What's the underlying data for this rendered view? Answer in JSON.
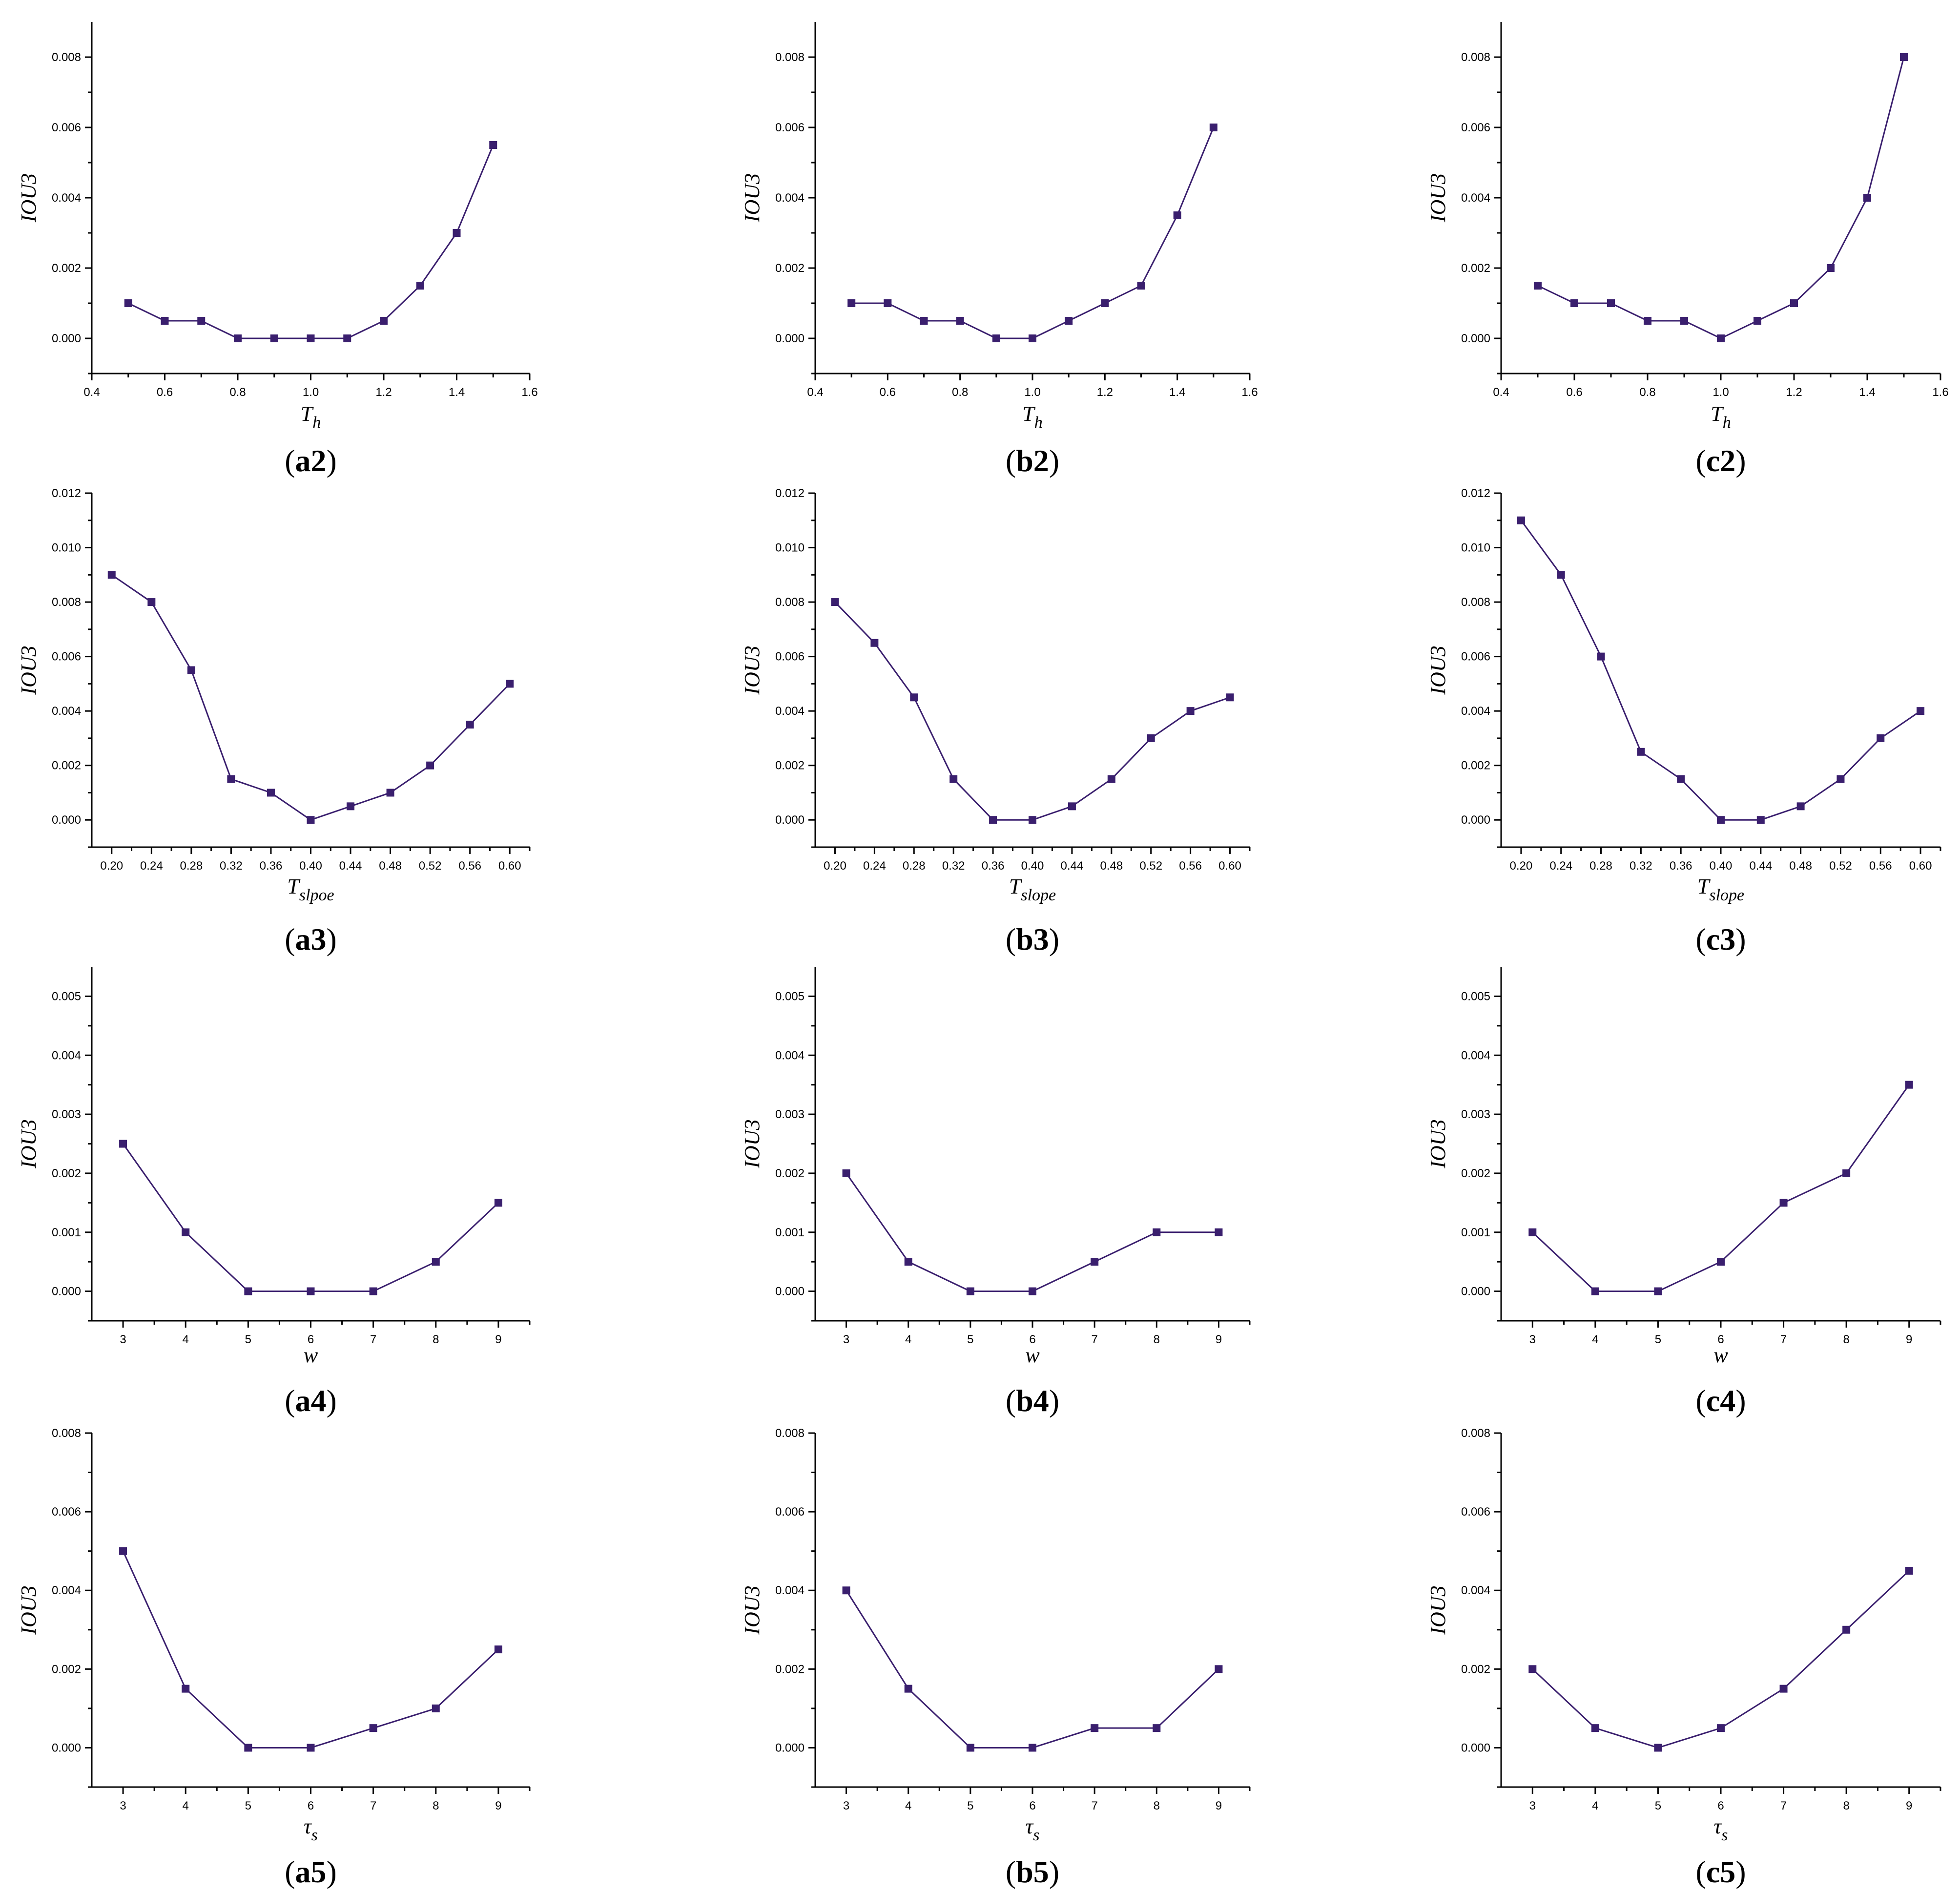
{
  "series_color": "#3a1f6e",
  "chart_data": [
    {
      "id": "a2",
      "type": "line",
      "panel_label": "(a2)",
      "panel_letter": "a2",
      "ylabel": "IOU3",
      "xlabel_main": "T",
      "xlabel_sub": "h",
      "xlim": [
        0.4,
        1.6
      ],
      "ylim": [
        -0.001,
        0.009
      ],
      "xticks": [
        "0.4",
        "0.6",
        "0.8",
        "1.0",
        "1.2",
        "1.4",
        "1.6"
      ],
      "yticks": [
        "0.000",
        "0.002",
        "0.004",
        "0.006",
        "0.008"
      ],
      "x": [
        0.5,
        0.6,
        0.7,
        0.8,
        0.9,
        1.0,
        1.1,
        1.2,
        1.3,
        1.4,
        1.5
      ],
      "y": [
        0.001,
        0.0005,
        0.0005,
        0,
        0,
        0,
        0,
        0.0005,
        0.0015,
        0.003,
        0.0055
      ]
    },
    {
      "id": "b2",
      "type": "line",
      "panel_label": "(b2)",
      "panel_letter": "b2",
      "ylabel": "IOU3",
      "xlabel_main": "T",
      "xlabel_sub": "h",
      "xlim": [
        0.4,
        1.6
      ],
      "ylim": [
        -0.001,
        0.009
      ],
      "xticks": [
        "0.4",
        "0.6",
        "0.8",
        "1.0",
        "1.2",
        "1.4",
        "1.6"
      ],
      "yticks": [
        "0.000",
        "0.002",
        "0.004",
        "0.006",
        "0.008"
      ],
      "x": [
        0.5,
        0.6,
        0.7,
        0.8,
        0.9,
        1.0,
        1.1,
        1.2,
        1.3,
        1.4,
        1.5
      ],
      "y": [
        0.001,
        0.001,
        0.0005,
        0.0005,
        0,
        0,
        0.0005,
        0.001,
        0.0015,
        0.0035,
        0.006
      ]
    },
    {
      "id": "c2",
      "type": "line",
      "panel_label": "(c2)",
      "panel_letter": "c2",
      "ylabel": "IOU3",
      "xlabel_main": "T",
      "xlabel_sub": "h",
      "xlim": [
        0.4,
        1.6
      ],
      "ylim": [
        -0.001,
        0.009
      ],
      "xticks": [
        "0.4",
        "0.6",
        "0.8",
        "1.0",
        "1.2",
        "1.4",
        "1.6"
      ],
      "yticks": [
        "0.000",
        "0.002",
        "0.004",
        "0.006",
        "0.008"
      ],
      "x": [
        0.5,
        0.6,
        0.7,
        0.8,
        0.9,
        1.0,
        1.1,
        1.2,
        1.3,
        1.4,
        1.5
      ],
      "y": [
        0.0015,
        0.001,
        0.001,
        0.0005,
        0.0005,
        0,
        0.0005,
        0.001,
        0.002,
        0.004,
        0.008
      ]
    },
    {
      "id": "a3",
      "type": "line",
      "panel_label": "(a3)",
      "panel_letter": "a3",
      "ylabel": "IOU3",
      "xlabel_main": "T",
      "xlabel_sub": "slpoe",
      "xlim": [
        0.18,
        0.62
      ],
      "ylim": [
        -0.001,
        0.012
      ],
      "xticks": [
        "0.20",
        "0.24",
        "0.28",
        "0.32",
        "0.36",
        "0.40",
        "0.44",
        "0.48",
        "0.52",
        "0.56",
        "0.60"
      ],
      "yticks": [
        "0.000",
        "0.002",
        "0.004",
        "0.006",
        "0.008",
        "0.010",
        "0.012"
      ],
      "x": [
        0.2,
        0.24,
        0.28,
        0.32,
        0.36,
        0.4,
        0.44,
        0.48,
        0.52,
        0.56,
        0.6
      ],
      "y": [
        0.009,
        0.008,
        0.0055,
        0.0015,
        0.001,
        0,
        0.0005,
        0.001,
        0.002,
        0.0035,
        0.005
      ]
    },
    {
      "id": "b3",
      "type": "line",
      "panel_label": "(b3)",
      "panel_letter": "b3",
      "ylabel": "IOU3",
      "xlabel_main": "T",
      "xlabel_sub": "slope",
      "xlim": [
        0.18,
        0.62
      ],
      "ylim": [
        -0.001,
        0.012
      ],
      "xticks": [
        "0.20",
        "0.24",
        "0.28",
        "0.32",
        "0.36",
        "0.40",
        "0.44",
        "0.48",
        "0.52",
        "0.56",
        "0.60"
      ],
      "yticks": [
        "0.000",
        "0.002",
        "0.004",
        "0.006",
        "0.008",
        "0.010",
        "0.012"
      ],
      "x": [
        0.2,
        0.24,
        0.28,
        0.32,
        0.36,
        0.4,
        0.44,
        0.48,
        0.52,
        0.56,
        0.6
      ],
      "y": [
        0.008,
        0.0065,
        0.0045,
        0.0015,
        0,
        0,
        0.0005,
        0.0015,
        0.003,
        0.004,
        0.0045
      ]
    },
    {
      "id": "c3",
      "type": "line",
      "panel_label": "(c3)",
      "panel_letter": "c3",
      "ylabel": "IOU3",
      "xlabel_main": "T",
      "xlabel_sub": "slope",
      "xlim": [
        0.18,
        0.62
      ],
      "ylim": [
        -0.001,
        0.012
      ],
      "xticks": [
        "0.20",
        "0.24",
        "0.28",
        "0.32",
        "0.36",
        "0.40",
        "0.44",
        "0.48",
        "0.52",
        "0.56",
        "0.60"
      ],
      "yticks": [
        "0.000",
        "0.002",
        "0.004",
        "0.006",
        "0.008",
        "0.010",
        "0.012"
      ],
      "x": [
        0.2,
        0.24,
        0.28,
        0.32,
        0.36,
        0.4,
        0.44,
        0.48,
        0.52,
        0.56,
        0.6
      ],
      "y": [
        0.011,
        0.009,
        0.006,
        0.0025,
        0.0015,
        0,
        0,
        0.0005,
        0.0015,
        0.003,
        0.004
      ]
    },
    {
      "id": "a4",
      "type": "line",
      "panel_label": "(a4)",
      "panel_letter": "a4",
      "ylabel": "IOU3",
      "xlabel_main": "w",
      "xlabel_sub": "",
      "xlim": [
        2.5,
        9.5
      ],
      "ylim": [
        -0.0005,
        0.0055
      ],
      "xticks": [
        "3",
        "4",
        "5",
        "6",
        "7",
        "8",
        "9"
      ],
      "yticks": [
        "0.000",
        "0.001",
        "0.002",
        "0.003",
        "0.004",
        "0.005"
      ],
      "x": [
        3,
        4,
        5,
        6,
        7,
        8,
        9
      ],
      "y": [
        0.0025,
        0.001,
        0,
        0,
        0,
        0.0005,
        0.0015
      ]
    },
    {
      "id": "b4",
      "type": "line",
      "panel_label": "(b4)",
      "panel_letter": "b4",
      "ylabel": "IOU3",
      "xlabel_main": "w",
      "xlabel_sub": "",
      "xlim": [
        2.5,
        9.5
      ],
      "ylim": [
        -0.0005,
        0.0055
      ],
      "xticks": [
        "3",
        "4",
        "5",
        "6",
        "7",
        "8",
        "9"
      ],
      "yticks": [
        "0.000",
        "0.001",
        "0.002",
        "0.003",
        "0.004",
        "0.005"
      ],
      "x": [
        3,
        4,
        5,
        6,
        7,
        8,
        9
      ],
      "y": [
        0.002,
        0.0005,
        0,
        0,
        0.0005,
        0.001,
        0.001
      ]
    },
    {
      "id": "c4",
      "type": "line",
      "panel_label": "(c4)",
      "panel_letter": "c4",
      "ylabel": "IOU3",
      "xlabel_main": "w",
      "xlabel_sub": "",
      "xlim": [
        2.5,
        9.5
      ],
      "ylim": [
        -0.0005,
        0.0055
      ],
      "xticks": [
        "3",
        "4",
        "5",
        "6",
        "7",
        "8",
        "9"
      ],
      "yticks": [
        "0.000",
        "0.001",
        "0.002",
        "0.003",
        "0.004",
        "0.005"
      ],
      "x": [
        3,
        4,
        5,
        6,
        7,
        8,
        9
      ],
      "y": [
        0.001,
        0,
        0,
        0.0005,
        0.0015,
        0.002,
        0.0035
      ]
    },
    {
      "id": "a5",
      "type": "line",
      "panel_label": "(a5)",
      "panel_letter": "a5",
      "ylabel": "IOU3",
      "xlabel_main": "τ",
      "xlabel_sub": "s",
      "xlim": [
        2.5,
        9.5
      ],
      "ylim": [
        -0.001,
        0.008
      ],
      "xticks": [
        "3",
        "4",
        "5",
        "6",
        "7",
        "8",
        "9"
      ],
      "yticks": [
        "0.000",
        "0.002",
        "0.004",
        "0.006",
        "0.008"
      ],
      "x": [
        3,
        4,
        5,
        6,
        7,
        8,
        9
      ],
      "y": [
        0.005,
        0.0015,
        0,
        0,
        0.0005,
        0.001,
        0.0025
      ]
    },
    {
      "id": "b5",
      "type": "line",
      "panel_label": "(b5)",
      "panel_letter": "b5",
      "ylabel": "IOU3",
      "xlabel_main": "τ",
      "xlabel_sub": "s",
      "xlim": [
        2.5,
        9.5
      ],
      "ylim": [
        -0.001,
        0.008
      ],
      "xticks": [
        "3",
        "4",
        "5",
        "6",
        "7",
        "8",
        "9"
      ],
      "yticks": [
        "0.000",
        "0.002",
        "0.004",
        "0.006",
        "0.008"
      ],
      "x": [
        3,
        4,
        5,
        6,
        7,
        8,
        9
      ],
      "y": [
        0.004,
        0.0015,
        0,
        0,
        0.0005,
        0.0005,
        0.002
      ]
    },
    {
      "id": "c5",
      "type": "line",
      "panel_label": "(c5)",
      "panel_letter": "c5",
      "ylabel": "IOU3",
      "xlabel_main": "τ",
      "xlabel_sub": "s",
      "xlim": [
        2.5,
        9.5
      ],
      "ylim": [
        -0.001,
        0.008
      ],
      "xticks": [
        "3",
        "4",
        "5",
        "6",
        "7",
        "8",
        "9"
      ],
      "yticks": [
        "0.000",
        "0.002",
        "0.004",
        "0.006",
        "0.008"
      ],
      "x": [
        3,
        4,
        5,
        6,
        7,
        8,
        9
      ],
      "y": [
        0.002,
        0.0005,
        0,
        0.0005,
        0.0015,
        0.003,
        0.0045
      ]
    }
  ]
}
